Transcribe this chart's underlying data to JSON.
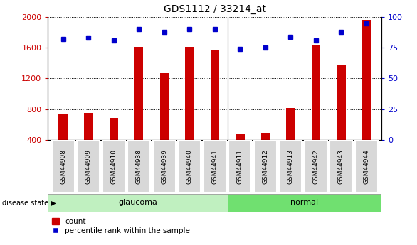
{
  "title": "GDS1112 / 33214_at",
  "categories": [
    "GSM44908",
    "GSM44909",
    "GSM44910",
    "GSM44938",
    "GSM44939",
    "GSM44940",
    "GSM44941",
    "GSM44911",
    "GSM44912",
    "GSM44913",
    "GSM44942",
    "GSM44943",
    "GSM44944"
  ],
  "counts": [
    730,
    745,
    680,
    1610,
    1265,
    1615,
    1565,
    470,
    490,
    815,
    1635,
    1370,
    1960
  ],
  "percentiles": [
    82,
    83,
    81,
    90,
    88,
    90,
    90,
    74,
    75,
    84,
    81,
    88,
    95
  ],
  "ylim_left": [
    400,
    2000
  ],
  "ylim_right": [
    0,
    100
  ],
  "yticks_left": [
    400,
    800,
    1200,
    1600,
    2000
  ],
  "yticks_right": [
    0,
    25,
    50,
    75,
    100
  ],
  "bar_color": "#cc0000",
  "dot_color": "#0000cc",
  "n_glaucoma": 7,
  "glaucoma_label": "glaucoma",
  "normal_label": "normal",
  "disease_state_label": "disease state",
  "legend_count": "count",
  "legend_percentile": "percentile rank within the sample",
  "bg_plot": "#ffffff",
  "tick_box_color": "#d8d8d8",
  "bg_glaucoma": "#c0f0c0",
  "bg_normal": "#70e070",
  "tick_label_color_left": "#cc0000",
  "tick_label_color_right": "#0000cc",
  "bar_width": 0.35
}
